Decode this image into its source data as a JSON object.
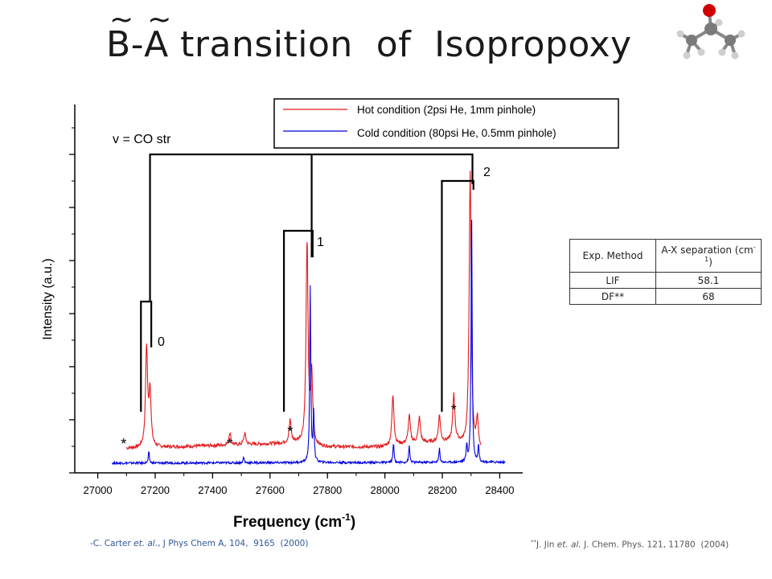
{
  "title": {
    "B": "B",
    "dash": "-",
    "A": "A",
    "tilde": "~",
    "rest": " transition  of  Isopropoxy"
  },
  "chart_data": {
    "type": "line",
    "xlabel": "Frequency (cm",
    "xlabel_sup": "-1",
    "xlabel_close": ")",
    "ylabel": "Intensity (a.u.)",
    "xlim": [
      26920,
      28480
    ],
    "ylim": [
      0,
      1
    ],
    "x_ticks": [
      27000,
      27200,
      27400,
      27600,
      27800,
      28000,
      28200,
      28400
    ],
    "y_tick_labels": "none",
    "legend_position": "top-right",
    "series": [
      {
        "name": "Hot condition (2psi He, 1mm pinhole)",
        "color": "#e31a1c",
        "baseline": [
          [
            27100,
            0.065
          ],
          [
            27700,
            0.085
          ],
          [
            27760,
            0.07
          ],
          [
            27980,
            0.07
          ],
          [
            28100,
            0.085
          ],
          [
            28250,
            0.09
          ],
          [
            28330,
            0.05
          ]
        ],
        "peaks": [
          [
            27170,
            0.36
          ],
          [
            27182,
            0.2
          ],
          [
            27460,
            0.045
          ],
          [
            27512,
            0.04
          ],
          [
            27670,
            0.08
          ],
          [
            27729,
            0.73
          ],
          [
            27745,
            0.25
          ],
          [
            28028,
            0.18
          ],
          [
            28085,
            0.1
          ],
          [
            28120,
            0.09
          ],
          [
            28190,
            0.095
          ],
          [
            28240,
            0.17
          ],
          [
            28297,
            1.0
          ],
          [
            28322,
            0.11
          ]
        ]
      },
      {
        "name": "Cold condition (80psi He, 0.5mm pinhole)",
        "color": "#0000e0",
        "baseline": [
          [
            27050,
            0.012
          ],
          [
            28420,
            0.015
          ]
        ],
        "peaks": [
          [
            27178,
            0.04
          ],
          [
            27508,
            0.02
          ],
          [
            27740,
            0.63
          ],
          [
            27752,
            0.18
          ],
          [
            28030,
            0.07
          ],
          [
            28085,
            0.06
          ],
          [
            28190,
            0.05
          ],
          [
            28285,
            0.06
          ],
          [
            28302,
            0.92
          ],
          [
            28326,
            0.06
          ]
        ]
      }
    ],
    "annotations": {
      "progression_label": "v = CO str",
      "levels": [
        "0",
        "1",
        "2"
      ],
      "asterisk": "*",
      "asterisk_positions_cm": [
        27090,
        27460,
        27670,
        28240
      ]
    }
  },
  "table": {
    "headers": [
      "Exp. Method",
      "A-X separation (cm",
      "-1",
      ")"
    ],
    "rows": [
      [
        "LIF",
        "58.1"
      ],
      [
        "DF**",
        "68"
      ]
    ]
  },
  "citations": {
    "left_pre": "-C. Carter ",
    "left_etal": "et. al.",
    "left_post": ", J Phys Chem A, 104,  9165  (2000)",
    "right_mark": "**",
    "right_pre": "J. Jin ",
    "right_etal": "et. al.",
    "right_post": " J. Chem. Phys. 121, 11780  (2004)"
  }
}
